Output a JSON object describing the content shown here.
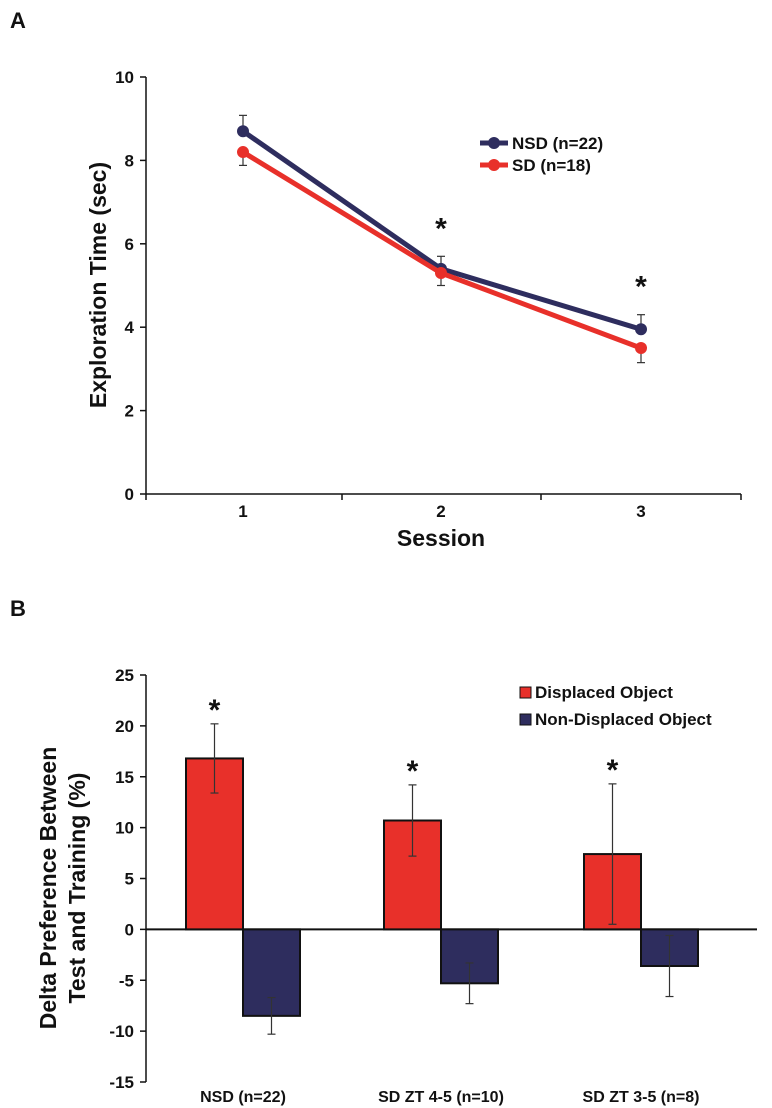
{
  "chart_data": [
    {
      "panel": "A",
      "type": "line",
      "xlabel": "Session",
      "ylabel": "Exploration Time (sec)",
      "x": [
        1,
        2,
        3
      ],
      "ylim": [
        0,
        10
      ],
      "yticks": [
        "0",
        "2",
        "4",
        "6",
        "8",
        "10"
      ],
      "xticks": [
        "1",
        "2",
        "3"
      ],
      "legend_position": "top-right",
      "series": [
        {
          "name": "NSD (n=22)",
          "color": "#2e2d5e",
          "values": [
            8.7,
            5.4,
            3.95
          ],
          "errors": [
            0.38,
            0.3,
            0.35
          ]
        },
        {
          "name": "SD (n=18)",
          "color": "#e8302a",
          "values": [
            8.2,
            5.3,
            3.5
          ],
          "errors": [
            0.32,
            0.3,
            0.35
          ]
        }
      ],
      "significance": [
        {
          "x": 2,
          "label": "*"
        },
        {
          "x": 3,
          "label": "*"
        }
      ]
    },
    {
      "panel": "B",
      "type": "bar",
      "ylabel_lines": [
        "Delta Preference Between",
        "Test and Training (%)"
      ],
      "categories": [
        "NSD (n=22)",
        "SD ZT 4-5 (n=10)",
        "SD ZT 3-5 (n=8)"
      ],
      "ylim": [
        -15,
        25
      ],
      "yticks": [
        "-15",
        "-10",
        "-5",
        "0",
        "5",
        "10",
        "15",
        "20",
        "25"
      ],
      "legend_position": "top-right",
      "series": [
        {
          "name": "Displaced Object",
          "color": "#e8302a",
          "values": [
            16.8,
            10.7,
            7.4
          ],
          "errors": [
            3.4,
            3.5,
            6.9
          ]
        },
        {
          "name": "Non-Displaced Object",
          "color": "#2e2d5e",
          "values": [
            -8.5,
            -5.3,
            -3.6
          ],
          "errors": [
            1.8,
            2.0,
            3.0
          ]
        }
      ],
      "significance": [
        {
          "category": 0,
          "label": "*"
        },
        {
          "category": 1,
          "label": "*"
        },
        {
          "category": 2,
          "label": "*"
        }
      ]
    }
  ]
}
